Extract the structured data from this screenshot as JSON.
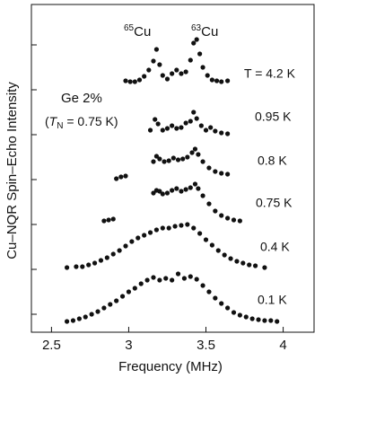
{
  "chart_data": {
    "type": "scatter",
    "x_label": "Frequency  (MHz)",
    "y_label": "Cu–NQR Spin–Echo Intensity",
    "xlim": [
      2.37,
      4.2
    ],
    "xticks": [
      2.5,
      3,
      3.5,
      4
    ],
    "ylim": [
      0,
      7.3
    ],
    "yticks": [
      0.4,
      1.4,
      2.4,
      3.4,
      4.4,
      5.4,
      6.4
    ],
    "color": "#111111",
    "peak_labels": [
      {
        "isotope": "65",
        "element": "Cu"
      },
      {
        "isotope": "63",
        "element": "Cu"
      }
    ],
    "sample_label": "Ge 2%",
    "neel_label": {
      "open": "(",
      "symbol": "T",
      "subscript": "N",
      "rest": " = 0.75 K)"
    },
    "series": [
      {
        "name": "T = 4.2 K",
        "x": [
          2.98,
          3.01,
          3.04,
          3.07,
          3.1,
          3.13,
          3.16,
          3.18,
          3.2,
          3.22,
          3.25,
          3.28,
          3.31,
          3.34,
          3.37,
          3.4,
          3.42,
          3.44,
          3.46,
          3.48,
          3.51,
          3.54,
          3.57,
          3.6,
          3.64
        ],
        "values": [
          5.6,
          5.58,
          5.58,
          5.62,
          5.7,
          5.84,
          6.04,
          6.3,
          5.96,
          5.72,
          5.64,
          5.76,
          5.84,
          5.76,
          5.8,
          6.06,
          6.44,
          6.52,
          6.2,
          5.9,
          5.72,
          5.62,
          5.6,
          5.58,
          5.6
        ]
      },
      {
        "name": "0.95 K",
        "x": [
          3.14,
          3.17,
          3.19,
          3.22,
          3.25,
          3.28,
          3.31,
          3.34,
          3.37,
          3.4,
          3.42,
          3.44,
          3.47,
          3.5,
          3.53,
          3.56,
          3.6,
          3.64
        ],
        "values": [
          4.5,
          4.74,
          4.64,
          4.5,
          4.54,
          4.6,
          4.54,
          4.56,
          4.66,
          4.7,
          4.9,
          4.76,
          4.6,
          4.5,
          4.56,
          4.48,
          4.44,
          4.42
        ]
      },
      {
        "name": "0.8 K",
        "x": [
          2.92,
          2.95,
          2.98,
          3.16,
          3.18,
          3.2,
          3.23,
          3.26,
          3.29,
          3.32,
          3.35,
          3.38,
          3.41,
          3.43,
          3.45,
          3.48,
          3.52,
          3.56,
          3.6,
          3.64
        ],
        "values": [
          3.42,
          3.46,
          3.48,
          3.8,
          3.92,
          3.86,
          3.8,
          3.82,
          3.88,
          3.84,
          3.86,
          3.9,
          4.0,
          4.08,
          3.96,
          3.8,
          3.66,
          3.58,
          3.54,
          3.52
        ]
      },
      {
        "name": "0.75 K",
        "x": [
          2.84,
          2.87,
          2.9,
          3.16,
          3.18,
          3.2,
          3.22,
          3.25,
          3.28,
          3.31,
          3.34,
          3.37,
          3.4,
          3.43,
          3.45,
          3.48,
          3.52,
          3.56,
          3.6,
          3.64,
          3.68,
          3.72
        ],
        "values": [
          2.48,
          2.5,
          2.52,
          3.1,
          3.16,
          3.14,
          3.08,
          3.1,
          3.16,
          3.2,
          3.14,
          3.18,
          3.22,
          3.3,
          3.2,
          3.04,
          2.86,
          2.7,
          2.6,
          2.54,
          2.5,
          2.48
        ]
      },
      {
        "name": "0.4 K",
        "x": [
          2.6,
          2.66,
          2.7,
          2.74,
          2.78,
          2.82,
          2.86,
          2.9,
          2.94,
          2.98,
          3.02,
          3.06,
          3.1,
          3.14,
          3.18,
          3.22,
          3.26,
          3.3,
          3.34,
          3.38,
          3.42,
          3.46,
          3.5,
          3.54,
          3.58,
          3.62,
          3.66,
          3.7,
          3.74,
          3.78,
          3.82,
          3.88
        ],
        "values": [
          1.44,
          1.46,
          1.46,
          1.5,
          1.54,
          1.6,
          1.66,
          1.74,
          1.82,
          1.92,
          2.02,
          2.1,
          2.16,
          2.22,
          2.28,
          2.32,
          2.32,
          2.36,
          2.38,
          2.4,
          2.32,
          2.2,
          2.06,
          1.94,
          1.82,
          1.72,
          1.64,
          1.58,
          1.54,
          1.5,
          1.48,
          1.44
        ]
      },
      {
        "name": "0.1 K",
        "x": [
          2.6,
          2.64,
          2.68,
          2.72,
          2.76,
          2.8,
          2.84,
          2.88,
          2.92,
          2.96,
          3.0,
          3.04,
          3.08,
          3.12,
          3.16,
          3.2,
          3.24,
          3.28,
          3.32,
          3.36,
          3.4,
          3.44,
          3.48,
          3.52,
          3.56,
          3.6,
          3.64,
          3.68,
          3.72,
          3.76,
          3.8,
          3.84,
          3.88,
          3.92,
          3.96
        ],
        "values": [
          0.24,
          0.26,
          0.3,
          0.34,
          0.4,
          0.46,
          0.54,
          0.62,
          0.7,
          0.8,
          0.9,
          0.98,
          1.08,
          1.16,
          1.22,
          1.16,
          1.2,
          1.16,
          1.3,
          1.2,
          1.24,
          1.18,
          1.04,
          0.9,
          0.76,
          0.64,
          0.54,
          0.44,
          0.38,
          0.34,
          0.3,
          0.28,
          0.26,
          0.26,
          0.24
        ]
      }
    ]
  }
}
